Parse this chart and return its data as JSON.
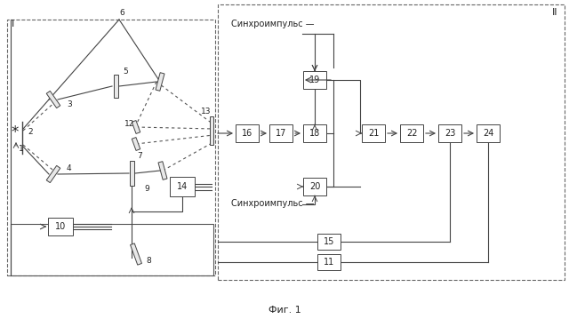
{
  "fig_width": 6.4,
  "fig_height": 3.59,
  "dpi": 100,
  "bg_color": "#ffffff",
  "box_color": "#ffffff",
  "box_edge": "#444444",
  "text_color": "#222222",
  "caption": "Фиг. 1",
  "label_I": "I",
  "label_II": "II",
  "synchro_top": "Синхроимпульс",
  "synchro_bot": "Синхроимпульс"
}
